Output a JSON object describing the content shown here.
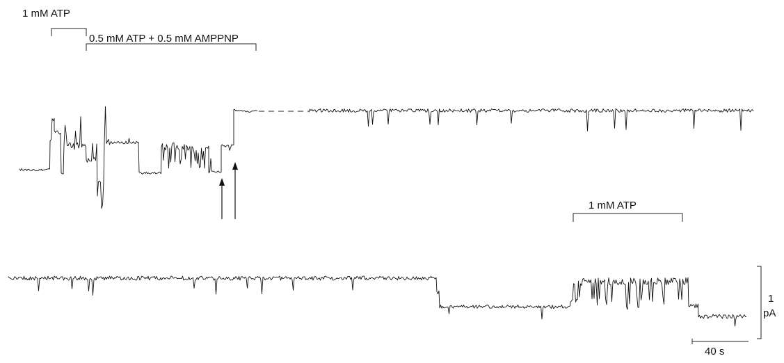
{
  "labels": {
    "atp_top": "1 mM ATP",
    "atp_amppnp": "0.5 mM ATP + 0.5 mM AMPPNP",
    "atp_bottom": "1 mM ATP",
    "scale_current_value": "1",
    "scale_current_unit": "pA",
    "scale_time": "40 s"
  },
  "colors": {
    "trace": "#111111",
    "background": "#ffffff"
  }
}
